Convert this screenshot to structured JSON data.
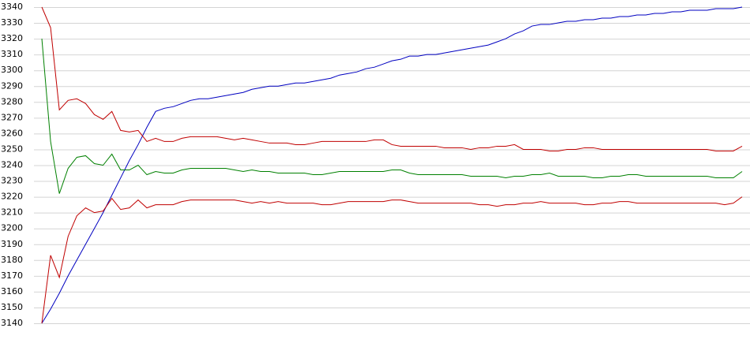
{
  "chart_data": {
    "type": "line",
    "ylim": [
      3140,
      3340
    ],
    "yticks": [
      3140,
      3150,
      3160,
      3170,
      3180,
      3190,
      3200,
      3210,
      3220,
      3230,
      3240,
      3250,
      3260,
      3270,
      3280,
      3290,
      3300,
      3310,
      3320,
      3330,
      3340
    ],
    "grid": true,
    "series": [
      {
        "color": "#0000c0",
        "values": [
          3140,
          3149,
          3159,
          3170,
          3180,
          3190,
          3200,
          3210,
          3221,
          3232,
          3243,
          3253,
          3264,
          3274,
          3276,
          3277,
          3279,
          3281,
          3282,
          3282,
          3283,
          3284,
          3285,
          3286,
          3288,
          3289,
          3290,
          3290,
          3291,
          3292,
          3292,
          3293,
          3294,
          3295,
          3297,
          3298,
          3299,
          3301,
          3302,
          3304,
          3306,
          3307,
          3309,
          3309,
          3310,
          3310,
          3311,
          3312,
          3313,
          3314,
          3315,
          3316,
          3318,
          3320,
          3323,
          3325,
          3328,
          3329,
          3329,
          3330,
          3331,
          3331,
          3332,
          3332,
          3333,
          3333,
          3334,
          3334,
          3335,
          3335,
          3336,
          3336,
          3337,
          3337,
          3338,
          3338,
          3338,
          3339,
          3339,
          3339,
          3340
        ]
      },
      {
        "color": "#c00000",
        "values": [
          3340,
          3327,
          3275,
          3281,
          3282,
          3279,
          3272,
          3269,
          3274,
          3262,
          3261,
          3262,
          3255,
          3257,
          3255,
          3255,
          3257,
          3258,
          3258,
          3258,
          3258,
          3257,
          3256,
          3257,
          3256,
          3255,
          3254,
          3254,
          3254,
          3253,
          3253,
          3254,
          3255,
          3255,
          3255,
          3255,
          3255,
          3255,
          3256,
          3256,
          3253,
          3252,
          3252,
          3252,
          3252,
          3252,
          3251,
          3251,
          3251,
          3250,
          3251,
          3251,
          3252,
          3252,
          3253,
          3250,
          3250,
          3250,
          3249,
          3249,
          3250,
          3250,
          3251,
          3251,
          3250,
          3250,
          3250,
          3250,
          3250,
          3250,
          3250,
          3250,
          3250,
          3250,
          3250,
          3250,
          3250,
          3249,
          3249,
          3249,
          3252
        ]
      },
      {
        "color": "#008000",
        "values": [
          3320,
          3255,
          3222,
          3238,
          3245,
          3246,
          3241,
          3240,
          3247,
          3237,
          3237,
          3240,
          3234,
          3236,
          3235,
          3235,
          3237,
          3238,
          3238,
          3238,
          3238,
          3238,
          3237,
          3236,
          3237,
          3236,
          3236,
          3235,
          3235,
          3235,
          3235,
          3234,
          3234,
          3235,
          3236,
          3236,
          3236,
          3236,
          3236,
          3236,
          3237,
          3237,
          3235,
          3234,
          3234,
          3234,
          3234,
          3234,
          3234,
          3233,
          3233,
          3233,
          3233,
          3232,
          3233,
          3233,
          3234,
          3234,
          3235,
          3233,
          3233,
          3233,
          3233,
          3232,
          3232,
          3233,
          3233,
          3234,
          3234,
          3233,
          3233,
          3233,
          3233,
          3233,
          3233,
          3233,
          3233,
          3232,
          3232,
          3232,
          3236
        ]
      },
      {
        "color": "#c00000",
        "values": [
          3140,
          3183,
          3169,
          3195,
          3208,
          3213,
          3210,
          3211,
          3219,
          3212,
          3213,
          3218,
          3213,
          3215,
          3215,
          3215,
          3217,
          3218,
          3218,
          3218,
          3218,
          3218,
          3218,
          3217,
          3216,
          3217,
          3216,
          3217,
          3216,
          3216,
          3216,
          3216,
          3215,
          3215,
          3216,
          3217,
          3217,
          3217,
          3217,
          3217,
          3218,
          3218,
          3217,
          3216,
          3216,
          3216,
          3216,
          3216,
          3216,
          3216,
          3215,
          3215,
          3214,
          3215,
          3215,
          3216,
          3216,
          3217,
          3216,
          3216,
          3216,
          3216,
          3215,
          3215,
          3216,
          3216,
          3217,
          3217,
          3216,
          3216,
          3216,
          3216,
          3216,
          3216,
          3216,
          3216,
          3216,
          3216,
          3215,
          3216,
          3220
        ]
      }
    ]
  }
}
